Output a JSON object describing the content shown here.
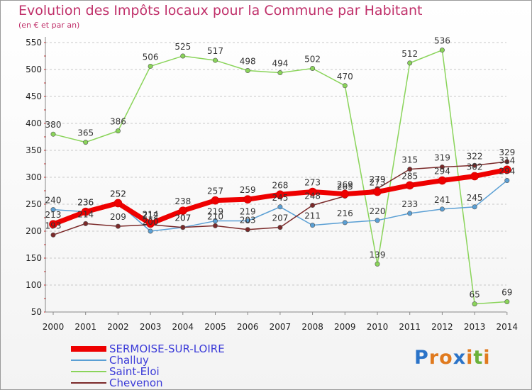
{
  "title": "Evolution des Impôts locaux pour la Commune par Habitant",
  "subtitle": "(en € et par an)",
  "logo": "Proxiti",
  "chart_data": {
    "type": "line",
    "title": "Evolution des Impôts locaux pour la Commune par Habitant",
    "subtitle": "(en € et par an)",
    "categories": [
      "2000",
      "2001",
      "2002",
      "2003",
      "2004",
      "2005",
      "2006",
      "2007",
      "2008",
      "2009",
      "2010",
      "2011",
      "2012",
      "2013",
      "2014"
    ],
    "y_ticks": [
      50,
      100,
      150,
      200,
      250,
      300,
      350,
      400,
      450,
      500,
      550
    ],
    "ylim": [
      50,
      550
    ],
    "grid": "horizontal dashed",
    "legend_position": "bottom-left",
    "series": [
      {
        "name": "SERMOISE-SUR-LOIRE",
        "color": "#ee0000",
        "width": 7,
        "values": [
          213,
          236,
          252,
          214,
          238,
          257,
          259,
          268,
          273,
          269,
          273,
          285,
          294,
          302,
          314
        ],
        "labels": [
          "213",
          "236",
          "252",
          "214",
          "238",
          "257",
          "259",
          "268",
          "273",
          "269",
          "273",
          "285",
          "294",
          "302",
          "314"
        ]
      },
      {
        "name": "Challuy",
        "color": "#5a9fd4",
        "width": 1.5,
        "values": [
          240,
          236,
          252,
          200,
          207,
          219,
          219,
          245,
          211,
          216,
          220,
          233,
          241,
          245,
          294
        ],
        "labels": [
          "240",
          "236",
          "252",
          "200",
          "207",
          "219",
          "219",
          "245",
          "211",
          "216",
          "220",
          "233",
          "241",
          "245",
          "294"
        ]
      },
      {
        "name": "Saint-Eloi",
        "color": "#8ad45a",
        "width": 1.5,
        "values": [
          380,
          365,
          386,
          506,
          525,
          517,
          498,
          494,
          502,
          470,
          139,
          512,
          536,
          65,
          69
        ],
        "labels": [
          "380",
          "365",
          "386",
          "506",
          "525",
          "517",
          "498",
          "494",
          "502",
          "470",
          "139",
          "512",
          "536",
          "65",
          "69"
        ]
      },
      {
        "name": "Chevenon",
        "color": "#7b2a2a",
        "width": 1.5,
        "values": [
          193,
          214,
          209,
          212,
          207,
          210,
          203,
          207,
          248,
          265,
          279,
          315,
          319,
          322,
          329
        ],
        "labels": [
          "193",
          "214",
          "209",
          "212",
          "207",
          "210",
          "203",
          "207",
          "248",
          "265",
          "279",
          "315",
          "319",
          "322",
          "329"
        ]
      }
    ]
  }
}
